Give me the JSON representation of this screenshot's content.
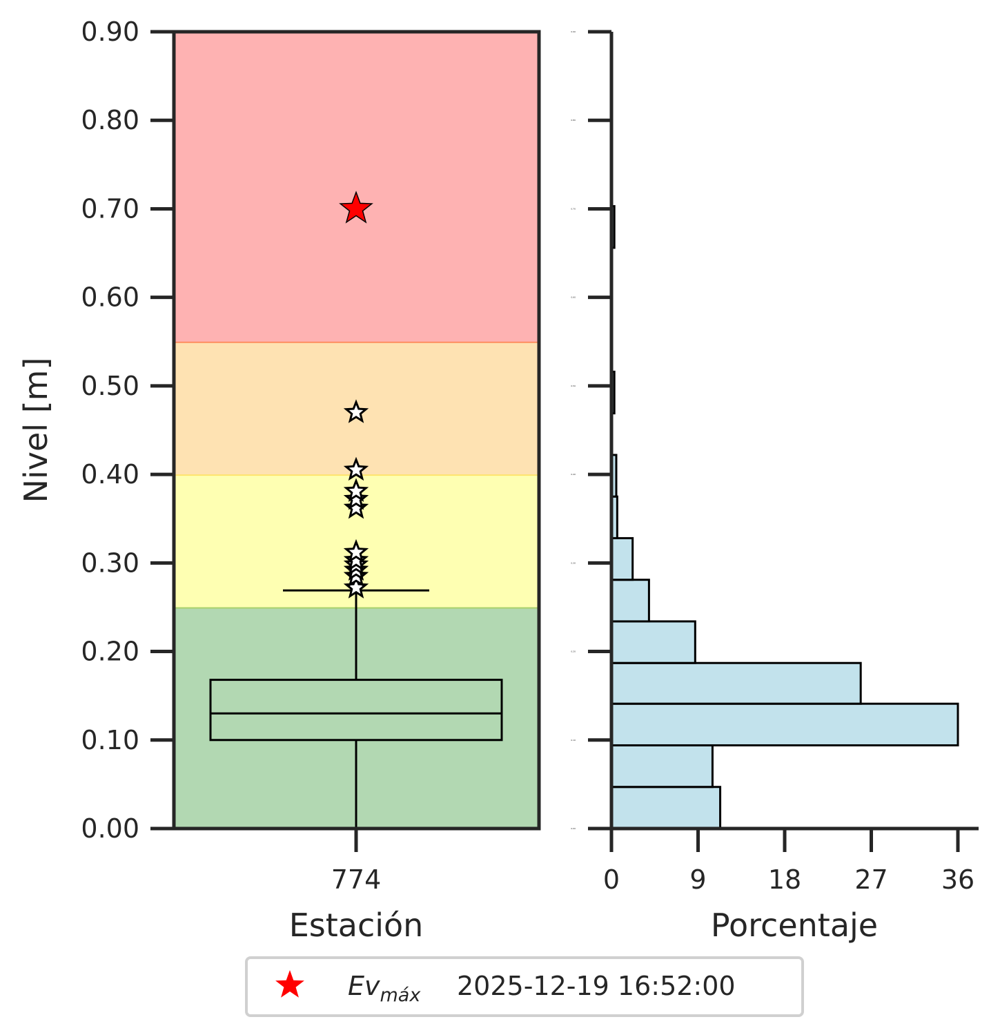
{
  "chart_data": [
    {
      "type": "box",
      "xlabel": "Estación",
      "ylabel": "Nivel [m]",
      "ylim": [
        0.0,
        0.9
      ],
      "yticks": [
        "0.00",
        "0.10",
        "0.20",
        "0.30",
        "0.40",
        "0.50",
        "0.60",
        "0.70",
        "0.80",
        "0.90"
      ],
      "categories": [
        "774"
      ],
      "bands": [
        {
          "from": 0.0,
          "to": 0.25,
          "color": "#b2d8b2",
          "edge": "#a8d060"
        },
        {
          "from": 0.25,
          "to": 0.4,
          "color": "#feffb2",
          "edge": "#ffe060"
        },
        {
          "from": 0.4,
          "to": 0.55,
          "color": "#fee2b2",
          "edge": "#ff7f50"
        },
        {
          "from": 0.55,
          "to": 0.9,
          "color": "#feb2b2",
          "edge": null
        }
      ],
      "box": {
        "whisker_low": 0.0,
        "q1": 0.1,
        "median": 0.13,
        "q3": 0.168,
        "whisker_high": 0.269
      },
      "outliers": [
        0.272,
        0.285,
        0.292,
        0.298,
        0.303,
        0.312,
        0.362,
        0.372,
        0.381,
        0.405,
        0.47
      ],
      "max_event": {
        "value": 0.7,
        "color": "#ff0000"
      }
    },
    {
      "type": "histogram",
      "orientation": "horizontal",
      "xlabel": "Porcentaje",
      "xlim": [
        0,
        37
      ],
      "xticks": [
        "0",
        "9",
        "18",
        "27",
        "36"
      ],
      "ylim": [
        0.0,
        0.9
      ],
      "yticks": [
        "0.00",
        "0.10",
        "0.20",
        "0.30",
        "0.40",
        "0.50",
        "0.60",
        "0.70",
        "0.80",
        "0.90"
      ],
      "bins": [
        {
          "from": 0.0,
          "to": 0.047,
          "value": 11.3
        },
        {
          "from": 0.047,
          "to": 0.094,
          "value": 10.5
        },
        {
          "from": 0.094,
          "to": 0.141,
          "value": 36.0
        },
        {
          "from": 0.141,
          "to": 0.187,
          "value": 25.9
        },
        {
          "from": 0.187,
          "to": 0.234,
          "value": 8.7
        },
        {
          "from": 0.234,
          "to": 0.281,
          "value": 3.9
        },
        {
          "from": 0.281,
          "to": 0.328,
          "value": 2.2
        },
        {
          "from": 0.328,
          "to": 0.375,
          "value": 0.6
        },
        {
          "from": 0.375,
          "to": 0.422,
          "value": 0.5
        },
        {
          "from": 0.422,
          "to": 0.469,
          "value": 0.0
        },
        {
          "from": 0.469,
          "to": 0.516,
          "value": 0.3
        },
        {
          "from": 0.516,
          "to": 0.563,
          "value": 0.0
        },
        {
          "from": 0.563,
          "to": 0.609,
          "value": 0.0
        },
        {
          "from": 0.609,
          "to": 0.656,
          "value": 0.0
        },
        {
          "from": 0.656,
          "to": 0.703,
          "value": 0.3
        }
      ],
      "bar_color": "#add8e6"
    }
  ],
  "legend": {
    "label_main": "Ev",
    "label_sub": "máx",
    "date": "2025-12-19 16:52:00",
    "marker_color": "#ff0000"
  }
}
